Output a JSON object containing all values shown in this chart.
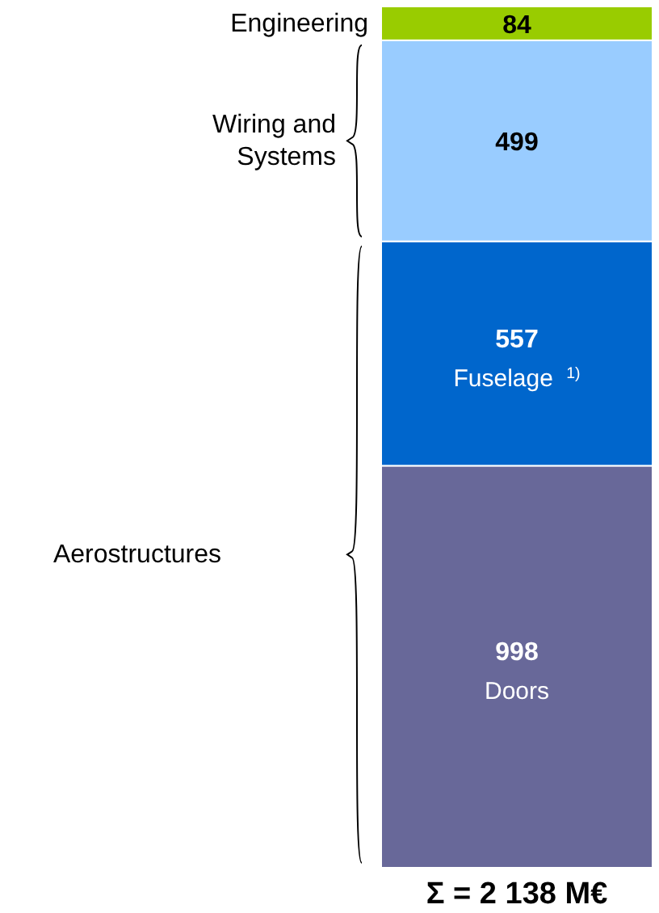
{
  "chart_data": {
    "type": "bar",
    "stacked": true,
    "categories": [
      null
    ],
    "data_labels": true,
    "series": [
      {
        "name": "Doors",
        "color": "#686899",
        "values": [
          998
        ]
      },
      {
        "name": "Fuselage $^{1)}$",
        "color": "#0066cc",
        "values": [
          557
        ]
      },
      {
        "name": "Wiring and Systems",
        "color": "#99ccff",
        "values": [
          499
        ]
      },
      {
        "name": "Engineering",
        "color": "#99cc00",
        "values": [
          84
        ]
      }
    ],
    "annotations": [
      "Aerostructures",
      "Σ = 2 138 M€"
    ]
  }
}
